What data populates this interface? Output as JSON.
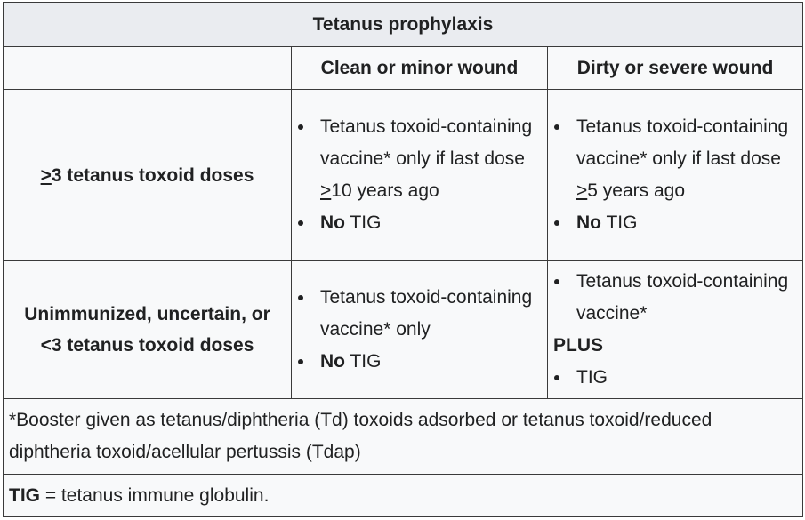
{
  "table": {
    "title": "Tetanus prophylaxis",
    "col_headers": [
      "",
      "Clean or minor wound",
      "Dirty or severe wound"
    ],
    "rows": [
      {
        "header_underlined": ">",
        "header_rest": "3 tetanus toxoid doses",
        "clean": {
          "item1_a": "Tetanus toxoid-containing vaccine* only if last dose ",
          "item1_u": ">",
          "item1_b": "10 years ago",
          "item2_bold": "No",
          "item2_rest": " TIG"
        },
        "dirty": {
          "item1_a": "Tetanus toxoid-containing vaccine* only if last dose ",
          "item1_u": ">",
          "item1_b": "5 years ago",
          "item2_bold": "No",
          "item2_rest": " TIG"
        }
      },
      {
        "header_line1": "Unimmunized, uncertain, or",
        "header_line2": "<3 tetanus toxoid doses",
        "clean": {
          "item1": "Tetanus toxoid-containing vaccine* only",
          "item2_bold": "No",
          "item2_rest": " TIG"
        },
        "dirty": {
          "item1": "Tetanus toxoid-containing vaccine*",
          "plus": "PLUS",
          "item2": "TIG"
        }
      }
    ],
    "footnote": "*Booster given as tetanus/diphtheria (Td) toxoids adsorbed or tetanus toxoid/reduced diphtheria toxoid/acellular pertussis (Tdap)",
    "abbrev_bold": "TIG",
    "abbrev_rest": " = tetanus immune globulin."
  }
}
